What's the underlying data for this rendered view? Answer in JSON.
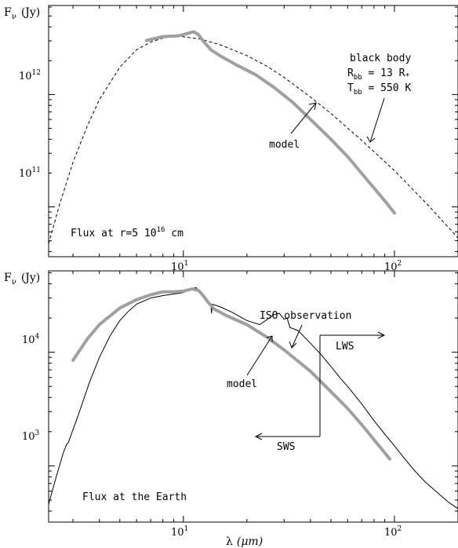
{
  "chart_data": [
    {
      "type": "line",
      "ylabel": "F",
      "ylabel_sub": "ν",
      "ylabel_unit": "(Jy)",
      "xlabel": "",
      "xscale": "log",
      "yscale": "log",
      "xlim": [
        2.3,
        200
      ],
      "ylim": [
        36000000000,
        6200000000000
      ],
      "x_ticks": [
        {
          "value": 10,
          "label": "10",
          "exp": "1"
        },
        {
          "value": 100,
          "label": "10",
          "exp": "2"
        }
      ],
      "y_ticks": [
        {
          "value": 100000000000,
          "label": "10",
          "exp": "11"
        },
        {
          "value": 1000000000000,
          "label": "10",
          "exp": "12"
        }
      ],
      "panel_label": {
        "text": "Flux at r=5 10",
        "exp": "16",
        "tail": " cm"
      },
      "series": [
        {
          "name": "black body",
          "style": "dashed",
          "color": "#000000",
          "points": [
            [
              2.3,
              47000000000
            ],
            [
              2.6,
              107000000000
            ],
            [
              3.0,
              250000000000
            ],
            [
              3.5,
              520000000000
            ],
            [
              4.0,
              900000000000
            ],
            [
              5.0,
              1750000000000
            ],
            [
              6.0,
              2500000000000
            ],
            [
              7.0,
              2930000000000
            ],
            [
              8.0,
              3180000000000
            ],
            [
              9.0,
              3280000000000
            ],
            [
              10.0,
              3270000000000
            ],
            [
              12.0,
              3120000000000
            ],
            [
              15.0,
              2770000000000
            ],
            [
              20.0,
              2220000000000
            ],
            [
              25.0,
              1780000000000
            ],
            [
              30.0,
              1420000000000
            ],
            [
              40.0,
              950000000000
            ],
            [
              50.0,
              680000000000
            ],
            [
              70.0,
              390000000000
            ],
            [
              100.0,
              210000000000
            ],
            [
              140.0,
              110000000000
            ],
            [
              200.0,
              53000000000
            ]
          ]
        },
        {
          "name": "model",
          "style": "thick",
          "color": "#a0a0a0",
          "points": [
            [
              6.7,
              3030000000000
            ],
            [
              8.0,
              3280000000000
            ],
            [
              9.5,
              3330000000000
            ],
            [
              10.5,
              3500000000000
            ],
            [
              11.2,
              3620000000000
            ],
            [
              11.8,
              3400000000000
            ],
            [
              12.5,
              2950000000000
            ],
            [
              13.5,
              2500000000000
            ],
            [
              15.0,
              2200000000000
            ],
            [
              18.0,
              1820000000000
            ],
            [
              22.0,
              1500000000000
            ],
            [
              27.0,
              1150000000000
            ],
            [
              33.0,
              850000000000
            ],
            [
              40.0,
              600000000000
            ],
            [
              50.0,
              400000000000
            ],
            [
              60.0,
              280000000000
            ],
            [
              75.0,
              170000000000
            ],
            [
              90.0,
              113000000000
            ],
            [
              100.0,
              88000000000
            ]
          ]
        }
      ],
      "annotations": [
        {
          "text": "black body"
        },
        {
          "text": "R",
          "sub": "bb",
          "tail": " = 13 R",
          "tail_sub": "*"
        },
        {
          "text": "T",
          "sub": "bb",
          "tail": " = 550 K"
        },
        {
          "text": "model"
        }
      ]
    },
    {
      "type": "line",
      "ylabel": "F",
      "ylabel_sub": "ν",
      "ylabel_unit": "(Jy)",
      "xlabel": "λ",
      "xlabel_unit": "(μm)",
      "xscale": "log",
      "yscale": "log",
      "xlim": [
        2.3,
        200
      ],
      "ylim": [
        320,
        52000
      ],
      "x_ticks": [
        {
          "value": 10,
          "label": "10",
          "exp": "1"
        },
        {
          "value": 100,
          "label": "10",
          "exp": "2"
        }
      ],
      "y_ticks": [
        {
          "value": 1000,
          "label": "10",
          "exp": "3"
        },
        {
          "value": 10000,
          "label": "10",
          "exp": "4"
        }
      ],
      "panel_label": {
        "text": "Flux at the Earth"
      },
      "series": [
        {
          "name": "ISO observation",
          "style": "thin",
          "color": "#000000",
          "points": [
            [
              2.3,
              460
            ],
            [
              2.5,
              800
            ],
            [
              2.7,
              1300
            ],
            [
              2.8,
              1550
            ],
            [
              2.85,
              1600
            ],
            [
              2.9,
              1750
            ],
            [
              3.2,
              2900
            ],
            [
              3.6,
              5500
            ],
            [
              4.0,
              9000
            ],
            [
              4.5,
              14000
            ],
            [
              5.0,
              19000
            ],
            [
              5.5,
              23000
            ],
            [
              6.0,
              26500
            ],
            [
              7.0,
              30000
            ],
            [
              8.0,
              31500
            ],
            [
              9.0,
              32500
            ],
            [
              10.0,
              33500
            ],
            [
              11.0,
              36500
            ],
            [
              11.5,
              37000
            ],
            [
              12.0,
              34000
            ],
            [
              13.0,
              28000
            ],
            [
              13.5,
              26000
            ],
            [
              13.6,
              22000
            ],
            [
              13.7,
              26500
            ],
            [
              15.0,
              25000
            ],
            [
              17.0,
              22500
            ],
            [
              20.0,
              19000
            ],
            [
              23.0,
              17500
            ],
            [
              25.0,
              19500
            ],
            [
              27.0,
              21500
            ],
            [
              28.5,
              22000
            ],
            [
              30.0,
              19500
            ],
            [
              31.0,
              20000
            ],
            [
              32.0,
              16500
            ],
            [
              35.0,
              15500
            ],
            [
              40.0,
              12000
            ],
            [
              45.0,
              9500
            ],
            [
              50.0,
              7500
            ],
            [
              55.0,
              6000
            ],
            [
              60.0,
              5000
            ],
            [
              70.0,
              3500
            ],
            [
              80.0,
              2500
            ],
            [
              90.0,
              1900
            ],
            [
              100.0,
              1500
            ],
            [
              110.0,
              1200
            ],
            [
              125.0,
              900
            ],
            [
              140.0,
              720
            ],
            [
              160.0,
              580
            ],
            [
              180.0,
              480
            ],
            [
              200.0,
              420
            ]
          ]
        },
        {
          "name": "model",
          "style": "thick",
          "color": "#a0a0a0",
          "points": [
            [
              3.0,
              8500
            ],
            [
              3.5,
              13000
            ],
            [
              4.0,
              17500
            ],
            [
              5.0,
              24500
            ],
            [
              6.0,
              29000
            ],
            [
              7.0,
              32000
            ],
            [
              8.0,
              34000
            ],
            [
              9.0,
              34000
            ],
            [
              10.0,
              34500
            ],
            [
              11.0,
              36000
            ],
            [
              11.8,
              35000
            ],
            [
              12.5,
              31000
            ],
            [
              13.0,
              28000
            ],
            [
              14.0,
              24000
            ],
            [
              16.0,
              21000
            ],
            [
              20.0,
              17500
            ],
            [
              25.0,
              13500
            ],
            [
              30.0,
              10500
            ],
            [
              40.0,
              6800
            ],
            [
              50.0,
              4500
            ],
            [
              60.0,
              3200
            ],
            [
              70.0,
              2300
            ],
            [
              80.0,
              1700
            ],
            [
              95.0,
              1150
            ]
          ]
        }
      ],
      "annotations": [
        {
          "text": "ISO observation"
        },
        {
          "text": "LWS"
        },
        {
          "text": "model"
        },
        {
          "text": "SWS"
        }
      ]
    }
  ]
}
